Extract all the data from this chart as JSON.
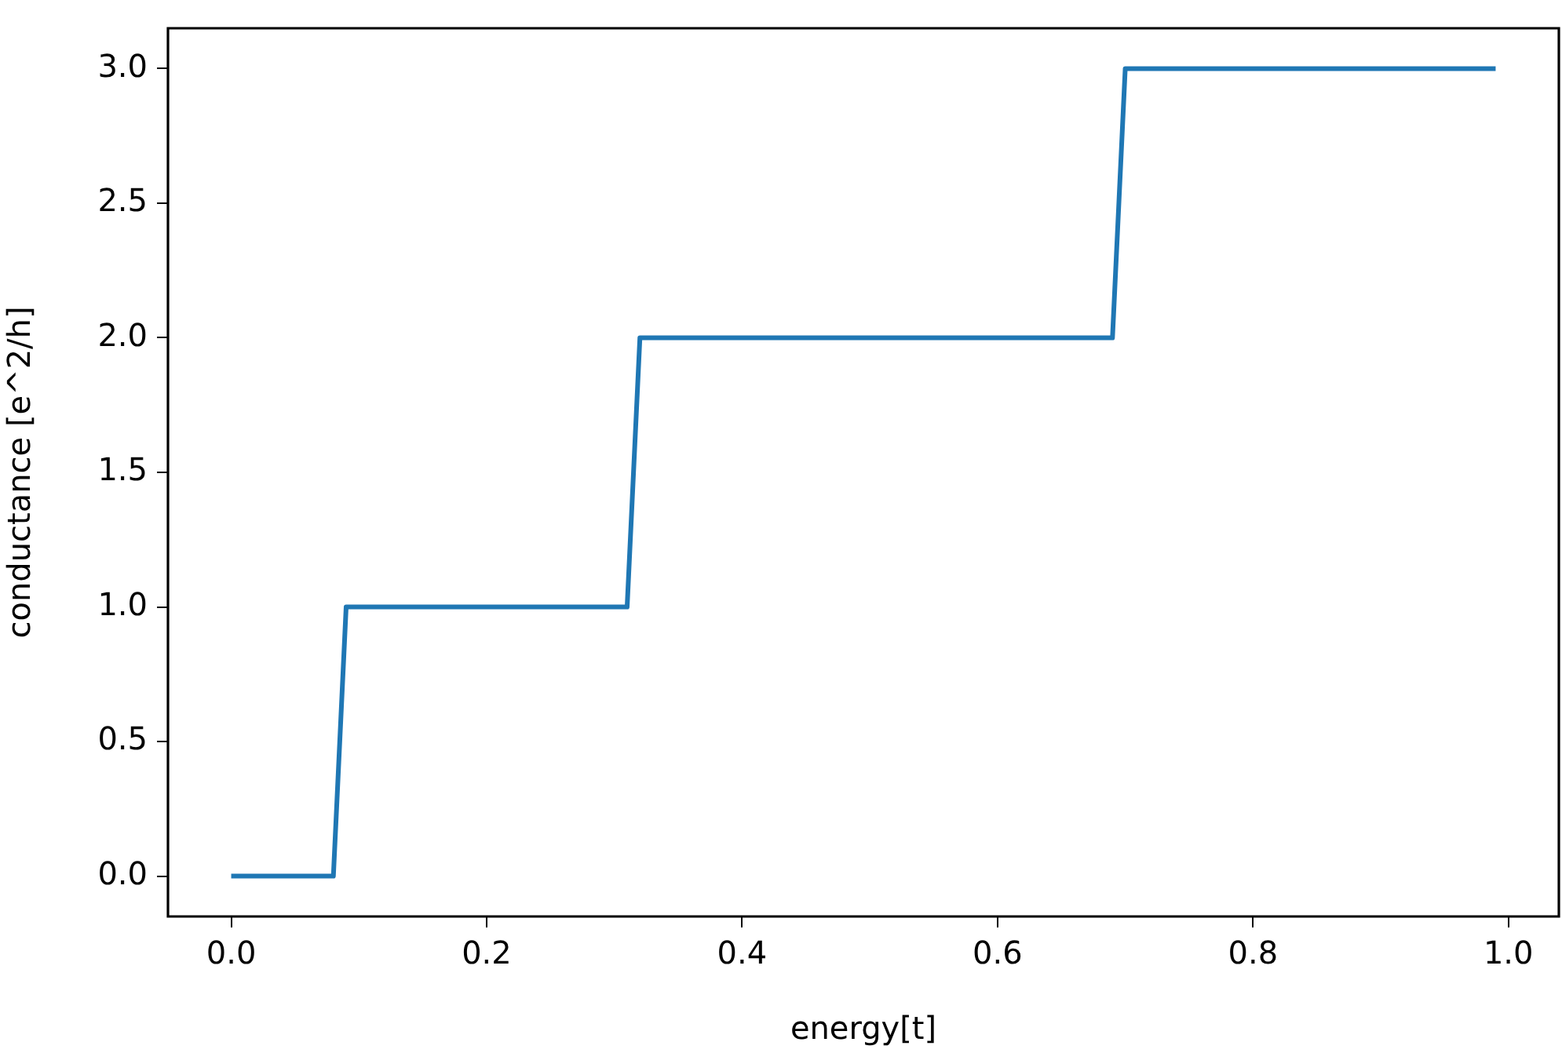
{
  "chart_data": {
    "type": "line",
    "xlabel": "energy[t]",
    "ylabel": "conductance [e^2/h]",
    "x": [
      0,
      0.08,
      0.09,
      0.31,
      0.32,
      0.69,
      0.7,
      0.99
    ],
    "series": [
      {
        "color": "#1f77b4",
        "values": [
          0,
          0,
          1,
          1,
          2,
          2,
          3,
          3
        ]
      }
    ],
    "xlim": [
      -0.0495,
      1.0395
    ],
    "xticks": [
      {
        "value": 0,
        "label": "0.0"
      },
      0.2,
      0.4,
      0.6,
      0.8,
      {
        "value": 1,
        "label": "1.0"
      }
    ],
    "ylim": [
      -0.15,
      3.15
    ],
    "yticks": [
      {
        "value": 0,
        "label": "0.0"
      },
      0.5,
      {
        "value": 1,
        "label": "1.0"
      },
      1.5,
      {
        "value": 2,
        "label": "2.0"
      },
      2.5,
      {
        "value": 3,
        "label": "3.0"
      }
    ],
    "grid": false,
    "legend": false,
    "marker": "none",
    "line_style": "solid"
  }
}
